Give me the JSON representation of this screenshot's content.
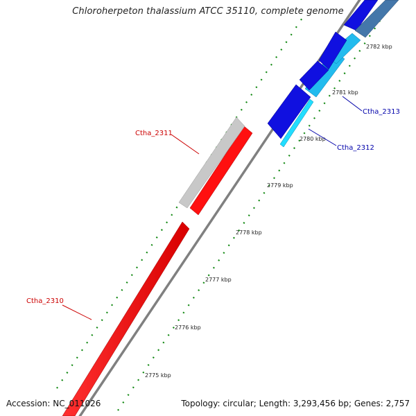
{
  "title": "Chloroherpeton thalassium ATCC 35110, complete genome",
  "footer": {
    "accession": "Accession: NC_011026",
    "summary": "Topology: circular; Length: 3,293,456 bp; Genes: 2,757"
  },
  "ticks": [
    "2775 kbp",
    "2776 kbp",
    "2777 kbp",
    "2778 kbp",
    "2779 kbp",
    "2780 kbp",
    "2781 kbp",
    "2782 kbp"
  ],
  "gene_labels": {
    "ctha_2310": "Ctha_2310",
    "ctha_2311": "Ctha_2311",
    "ctha_2312": "Ctha_2312",
    "ctha_2313": "Ctha_2313"
  },
  "colors": {
    "reverse_gene": "#ff0000",
    "reverse_pseudo": "#c8c8c8",
    "forward_gene": "#1010e0",
    "forward_cyan": "#22bbee",
    "forward_steel": "#4477aa",
    "backbone": "#808080",
    "gc_dots": "#118811",
    "label_red": "#cc0000",
    "label_blue": "#0000aa"
  }
}
